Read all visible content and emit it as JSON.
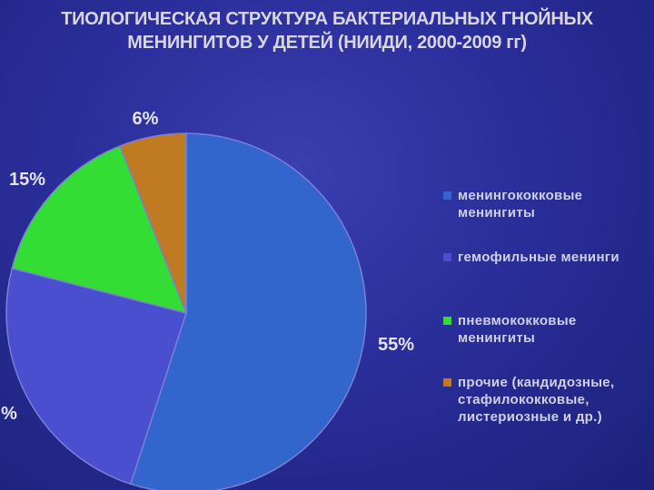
{
  "title": {
    "line1": "ТИОЛОГИЧЕСКАЯ СТРУКТУРА БАКТЕРИАЛЬНЫХ ГНОЙНЫХ",
    "line2": "МЕНИНГИТОВ У ДЕТЕЙ (НИИДИ, 2000-2009 гг)"
  },
  "chart_data": {
    "type": "pie",
    "start_angle_deg": 0,
    "direction": "clockwise",
    "slices": [
      {
        "label": "менингококковые\nменингиты",
        "value": 55,
        "value_label": "55%",
        "color": "#3366cc"
      },
      {
        "label": "гемофильные менинги",
        "value": 24,
        "value_label": "%",
        "color": "#4a4fcf"
      },
      {
        "label": "пневмококковые\nменингиты",
        "value": 15,
        "value_label": "15%",
        "color": "#33dd33"
      },
      {
        "label": "прочие (кандидозные,\nстафилококковые,\nлистериозные и др.)",
        "value": 6,
        "value_label": "6%",
        "color": "#c07a22"
      }
    ]
  }
}
